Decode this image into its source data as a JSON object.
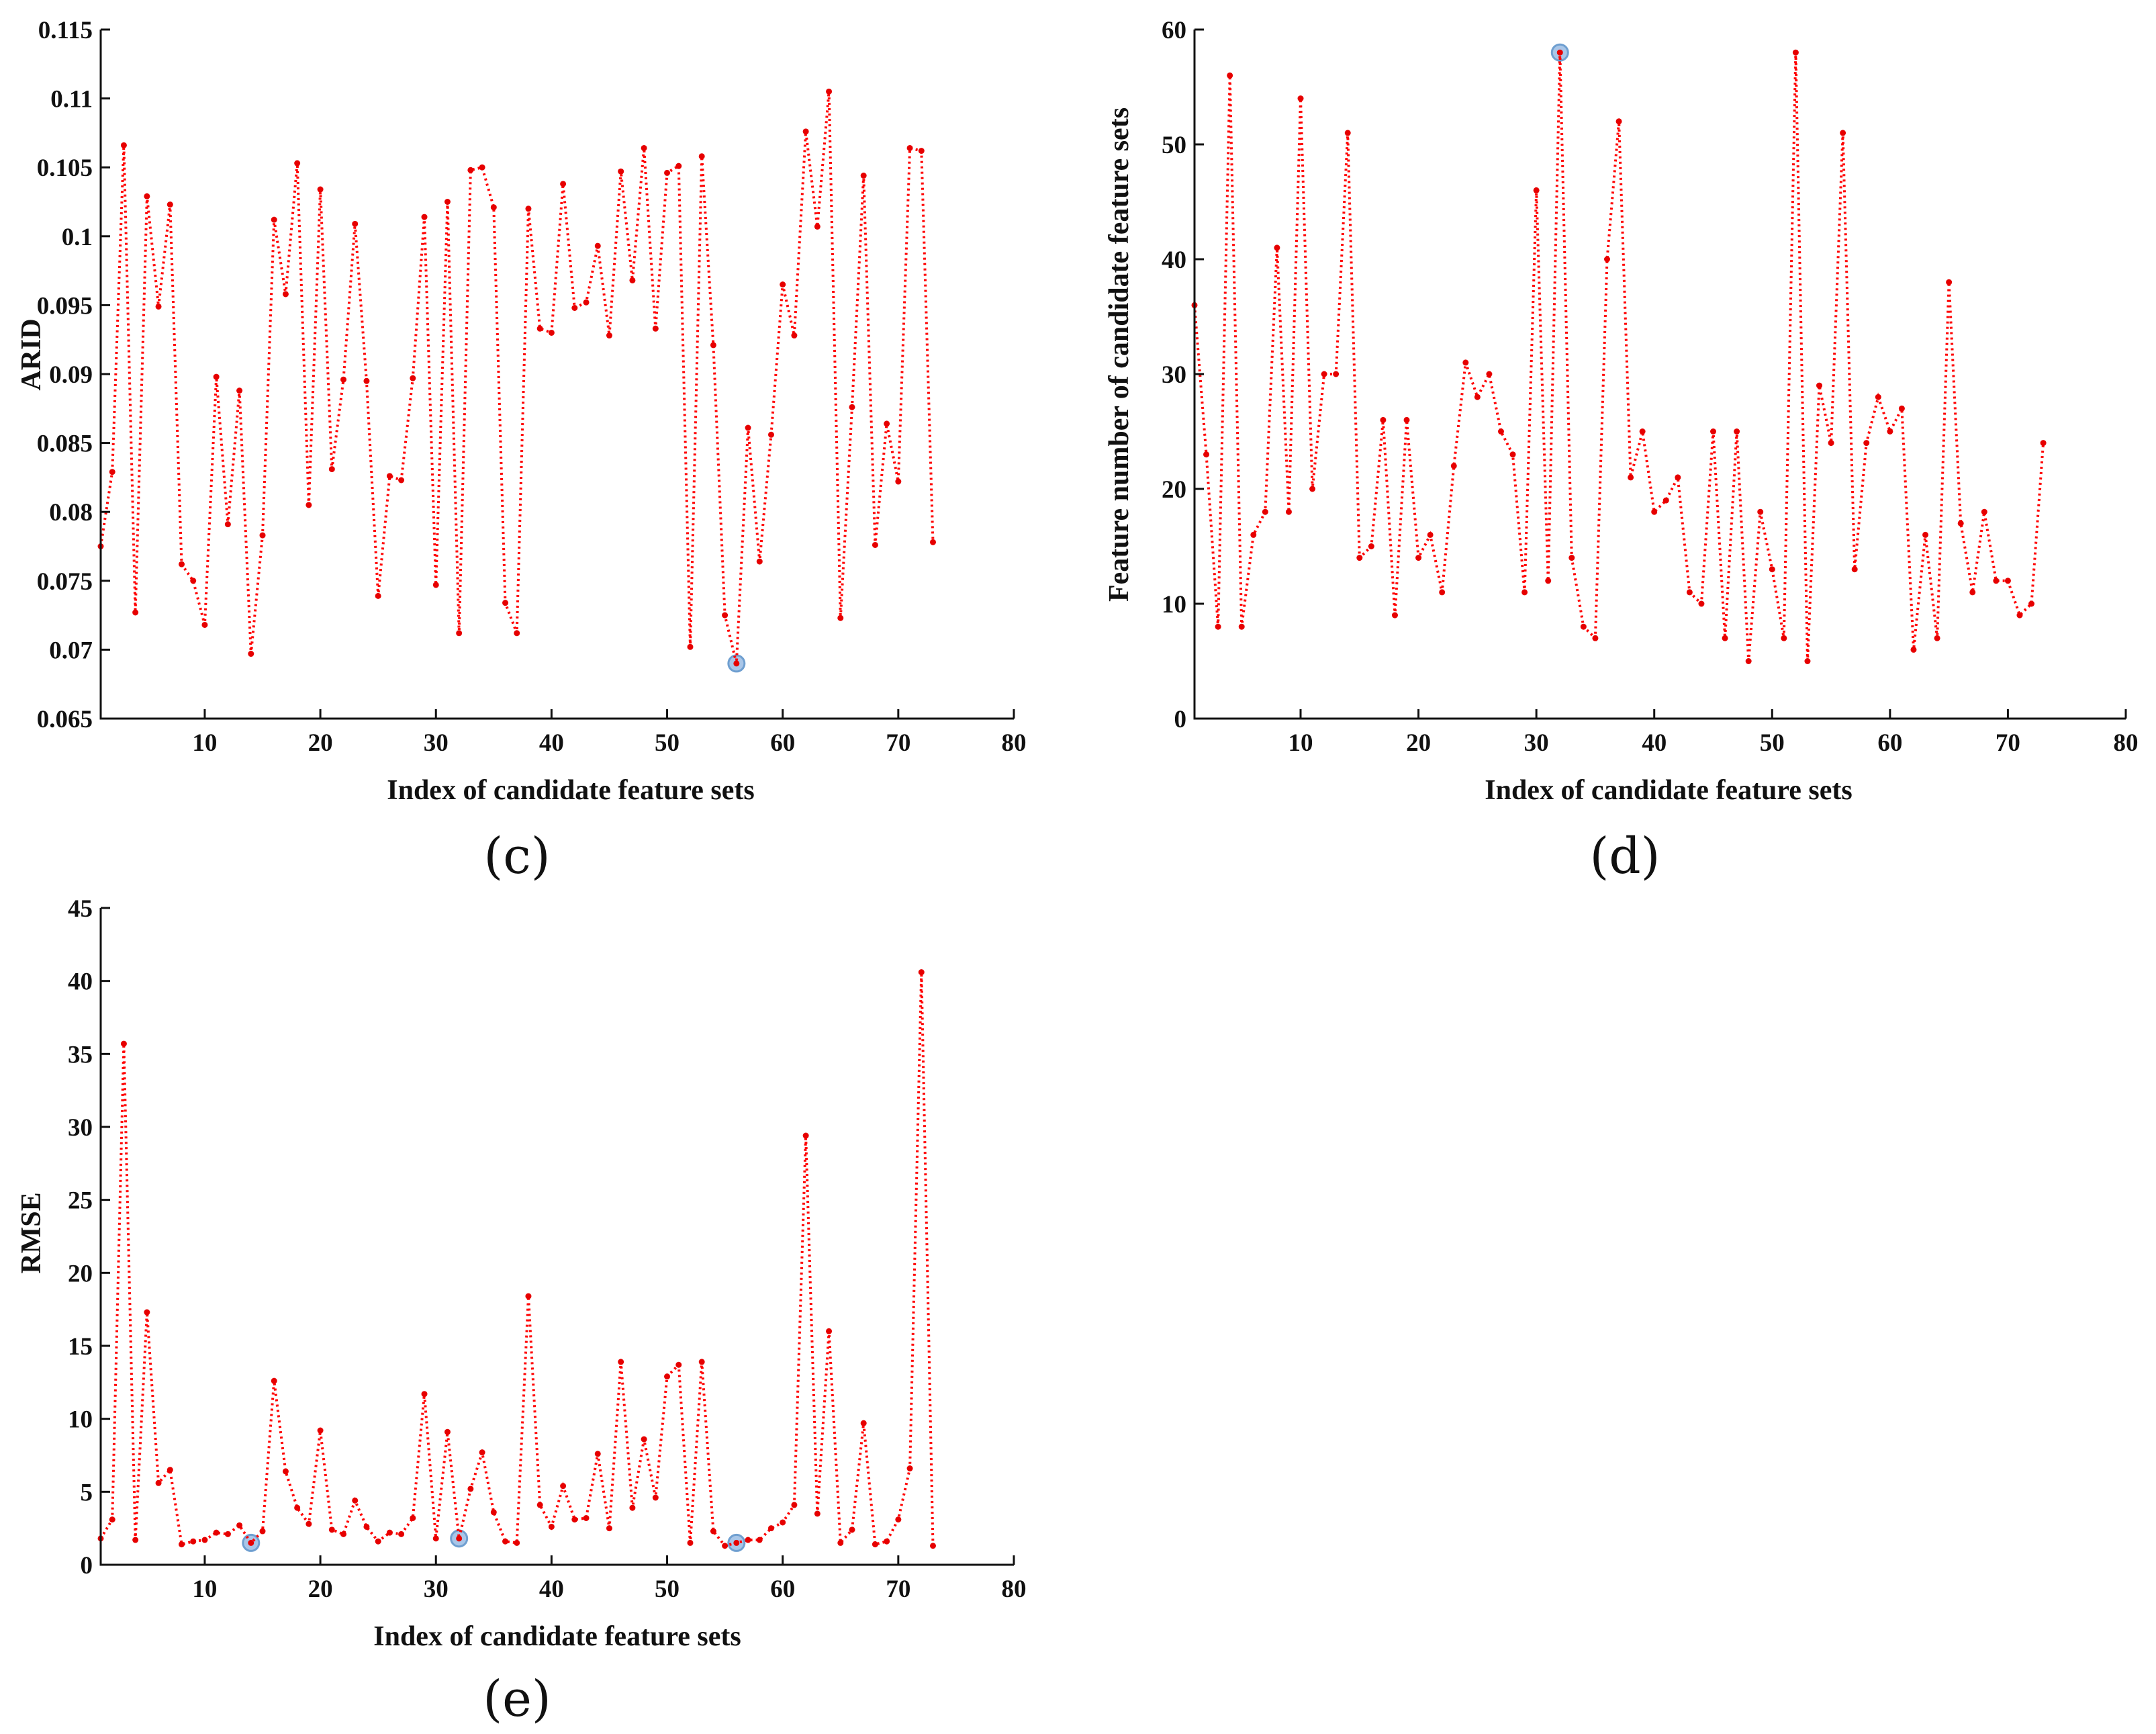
{
  "colors": {
    "series": "#ff0000",
    "point": "#e60000",
    "highlight": "#a9c6e8"
  },
  "chart_data": [
    {
      "id": "c",
      "type": "line",
      "panel_label": "(c)",
      "title": "",
      "xlabel": "Index of candidate feature sets",
      "ylabel": "ARID",
      "xlim": [
        1,
        80
      ],
      "ylim": [
        0.065,
        0.115
      ],
      "xticks": [
        10,
        20,
        30,
        40,
        50,
        60,
        70,
        80
      ],
      "xtick_labels": [
        "10",
        "20",
        "30",
        "40",
        "50",
        "60",
        "70",
        "80"
      ],
      "yticks": [
        0.065,
        0.07,
        0.075,
        0.08,
        0.085,
        0.09,
        0.095,
        0.1,
        0.105,
        0.11,
        0.115
      ],
      "ytick_labels": [
        "0.065",
        "0.07",
        "0.075",
        "0.08",
        "0.085",
        "0.09",
        "0.095",
        "0.1",
        "0.105",
        "0.11",
        "0.115"
      ],
      "x": [
        1,
        2,
        3,
        4,
        5,
        6,
        7,
        8,
        9,
        10,
        11,
        12,
        13,
        14,
        15,
        16,
        17,
        18,
        19,
        20,
        21,
        22,
        23,
        24,
        25,
        26,
        27,
        28,
        29,
        30,
        31,
        32,
        33,
        34,
        35,
        36,
        37,
        38,
        39,
        40,
        41,
        42,
        43,
        44,
        45,
        46,
        47,
        48,
        49,
        50,
        51,
        52,
        53,
        54,
        55,
        56,
        57,
        58,
        59,
        60,
        61,
        62,
        63,
        64,
        65,
        66,
        67,
        68,
        69,
        70,
        71,
        72,
        73
      ],
      "values": [
        0.0775,
        0.0829,
        0.1066,
        0.0727,
        0.1029,
        0.0949,
        0.1023,
        0.0762,
        0.075,
        0.0718,
        0.0898,
        0.0791,
        0.0888,
        0.0697,
        0.0783,
        0.1012,
        0.0958,
        0.1053,
        0.0805,
        0.1034,
        0.0831,
        0.0896,
        0.1009,
        0.0895,
        0.0739,
        0.0826,
        0.0823,
        0.0897,
        0.1014,
        0.0747,
        0.1025,
        0.0712,
        0.1048,
        0.105,
        0.1021,
        0.0734,
        0.0712,
        0.102,
        0.0933,
        0.093,
        0.1038,
        0.0948,
        0.0952,
        0.0993,
        0.0928,
        0.1047,
        0.0968,
        0.1064,
        0.0933,
        0.1046,
        0.1051,
        0.0702,
        0.1058,
        0.0921,
        0.0725,
        0.069,
        0.0861,
        0.0764,
        0.0856,
        0.0965,
        0.0928,
        0.1076,
        0.1007,
        0.1105,
        0.0723,
        0.0876,
        0.1044,
        0.0776,
        0.0864,
        0.0822,
        0.1064,
        0.1062,
        0.0778
      ],
      "highlight_x": [
        56
      ]
    },
    {
      "id": "d",
      "type": "line",
      "panel_label": "(d)",
      "title": "",
      "xlabel": "Index of candidate feature sets",
      "ylabel": "Feature number of candidate feature sets",
      "xlim": [
        1,
        80
      ],
      "ylim": [
        0,
        60
      ],
      "xticks": [
        10,
        20,
        30,
        40,
        50,
        60,
        70,
        80
      ],
      "xtick_labels": [
        "10",
        "20",
        "30",
        "40",
        "50",
        "60",
        "70",
        "80"
      ],
      "yticks": [
        0,
        10,
        20,
        30,
        40,
        50,
        60
      ],
      "ytick_labels": [
        "0",
        "10",
        "20",
        "30",
        "40",
        "50",
        "60"
      ],
      "x": [
        1,
        2,
        3,
        4,
        5,
        6,
        7,
        8,
        9,
        10,
        11,
        12,
        13,
        14,
        15,
        16,
        17,
        18,
        19,
        20,
        21,
        22,
        23,
        24,
        25,
        26,
        27,
        28,
        29,
        30,
        31,
        32,
        33,
        34,
        35,
        36,
        37,
        38,
        39,
        40,
        41,
        42,
        43,
        44,
        45,
        46,
        47,
        48,
        49,
        50,
        51,
        52,
        53,
        54,
        55,
        56,
        57,
        58,
        59,
        60,
        61,
        62,
        63,
        64,
        65,
        66,
        67,
        68,
        69,
        70,
        71,
        72,
        73
      ],
      "values": [
        36,
        23,
        8,
        56,
        8,
        16,
        18,
        41,
        18,
        54,
        20,
        30,
        30,
        51,
        14,
        15,
        26,
        9,
        26,
        14,
        16,
        11,
        22,
        31,
        28,
        30,
        25,
        23,
        11,
        46,
        12,
        58,
        14,
        8,
        7,
        40,
        52,
        21,
        25,
        18,
        19,
        21,
        11,
        10,
        25,
        7,
        25,
        5,
        18,
        13,
        7,
        58,
        5,
        29,
        24,
        51,
        13,
        24,
        28,
        25,
        27,
        6,
        16,
        7,
        38,
        17,
        11,
        18,
        12,
        12,
        9,
        10,
        24
      ],
      "highlight_x": [
        32
      ]
    },
    {
      "id": "e",
      "type": "line",
      "panel_label": "(e)",
      "title": "",
      "xlabel": "Index of candidate feature sets",
      "ylabel": "RMSE",
      "xlim": [
        1,
        80
      ],
      "ylim": [
        0,
        45
      ],
      "xticks": [
        10,
        20,
        30,
        40,
        50,
        60,
        70,
        80
      ],
      "xtick_labels": [
        "10",
        "20",
        "30",
        "40",
        "50",
        "60",
        "70",
        "80"
      ],
      "yticks": [
        0,
        5,
        10,
        15,
        20,
        25,
        30,
        35,
        40,
        45
      ],
      "ytick_labels": [
        "0",
        "5",
        "10",
        "15",
        "20",
        "25",
        "30",
        "35",
        "40",
        "45"
      ],
      "x": [
        1,
        2,
        3,
        4,
        5,
        6,
        7,
        8,
        9,
        10,
        11,
        12,
        13,
        14,
        15,
        16,
        17,
        18,
        19,
        20,
        21,
        22,
        23,
        24,
        25,
        26,
        27,
        28,
        29,
        30,
        31,
        32,
        33,
        34,
        35,
        36,
        37,
        38,
        39,
        40,
        41,
        42,
        43,
        44,
        45,
        46,
        47,
        48,
        49,
        50,
        51,
        52,
        53,
        54,
        55,
        56,
        57,
        58,
        59,
        60,
        61,
        62,
        63,
        64,
        65,
        66,
        67,
        68,
        69,
        70,
        71,
        72,
        73
      ],
      "values": [
        1.8,
        3.1,
        35.7,
        1.7,
        17.3,
        5.6,
        6.5,
        1.4,
        1.6,
        1.7,
        2.2,
        2.1,
        2.7,
        1.5,
        2.3,
        12.6,
        6.4,
        3.9,
        2.8,
        9.2,
        2.4,
        2.1,
        4.4,
        2.6,
        1.6,
        2.2,
        2.1,
        3.2,
        11.7,
        1.8,
        9.1,
        1.8,
        5.2,
        7.7,
        3.6,
        1.6,
        1.5,
        18.4,
        4.1,
        2.6,
        5.4,
        3.1,
        3.2,
        7.6,
        2.5,
        13.9,
        3.9,
        8.6,
        4.6,
        12.9,
        13.7,
        1.5,
        13.9,
        2.3,
        1.3,
        1.5,
        1.7,
        1.7,
        2.5,
        2.9,
        4.1,
        29.4,
        3.5,
        16.0,
        1.5,
        2.4,
        9.7,
        1.4,
        1.6,
        3.1,
        6.6,
        40.6,
        1.3
      ],
      "highlight_x": [
        14,
        32,
        56
      ]
    }
  ]
}
